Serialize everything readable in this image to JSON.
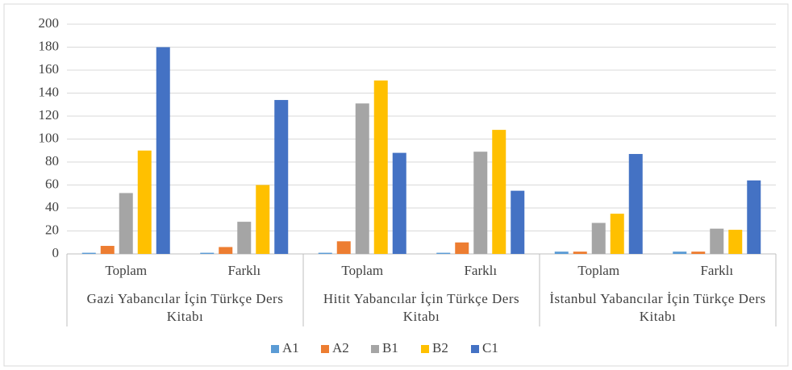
{
  "chart_data": {
    "type": "bar",
    "categories": [
      "Toplam",
      "Farklı",
      "Toplam",
      "Farklı",
      "Toplam",
      "Farklı"
    ],
    "groups": [
      {
        "label": "Gazi Yabancılar İçin Türkçe Ders Kitabı",
        "span": 2
      },
      {
        "label": "Hitit Yabancılar İçin Türkçe Ders Kitabı",
        "span": 2
      },
      {
        "label": "İstanbul Yabancılar İçin Türkçe Ders Kitabı",
        "span": 2
      }
    ],
    "series": [
      {
        "name": "A1",
        "color": "#5b9bd5",
        "values": [
          1,
          1,
          1,
          1,
          2,
          2
        ]
      },
      {
        "name": "A2",
        "color": "#ed7d31",
        "values": [
          7,
          6,
          11,
          10,
          2,
          2
        ]
      },
      {
        "name": "B1",
        "color": "#a5a5a5",
        "values": [
          53,
          28,
          131,
          89,
          27,
          22
        ]
      },
      {
        "name": "B2",
        "color": "#ffc000",
        "values": [
          90,
          60,
          151,
          108,
          35,
          21
        ]
      },
      {
        "name": "C1",
        "color": "#4472c4",
        "values": [
          180,
          134,
          88,
          55,
          87,
          64
        ]
      }
    ],
    "ylim": [
      0,
      200
    ],
    "yticks": [
      0,
      20,
      40,
      60,
      80,
      100,
      120,
      140,
      160,
      180,
      200
    ],
    "grid": true,
    "legend": "bottom"
  }
}
